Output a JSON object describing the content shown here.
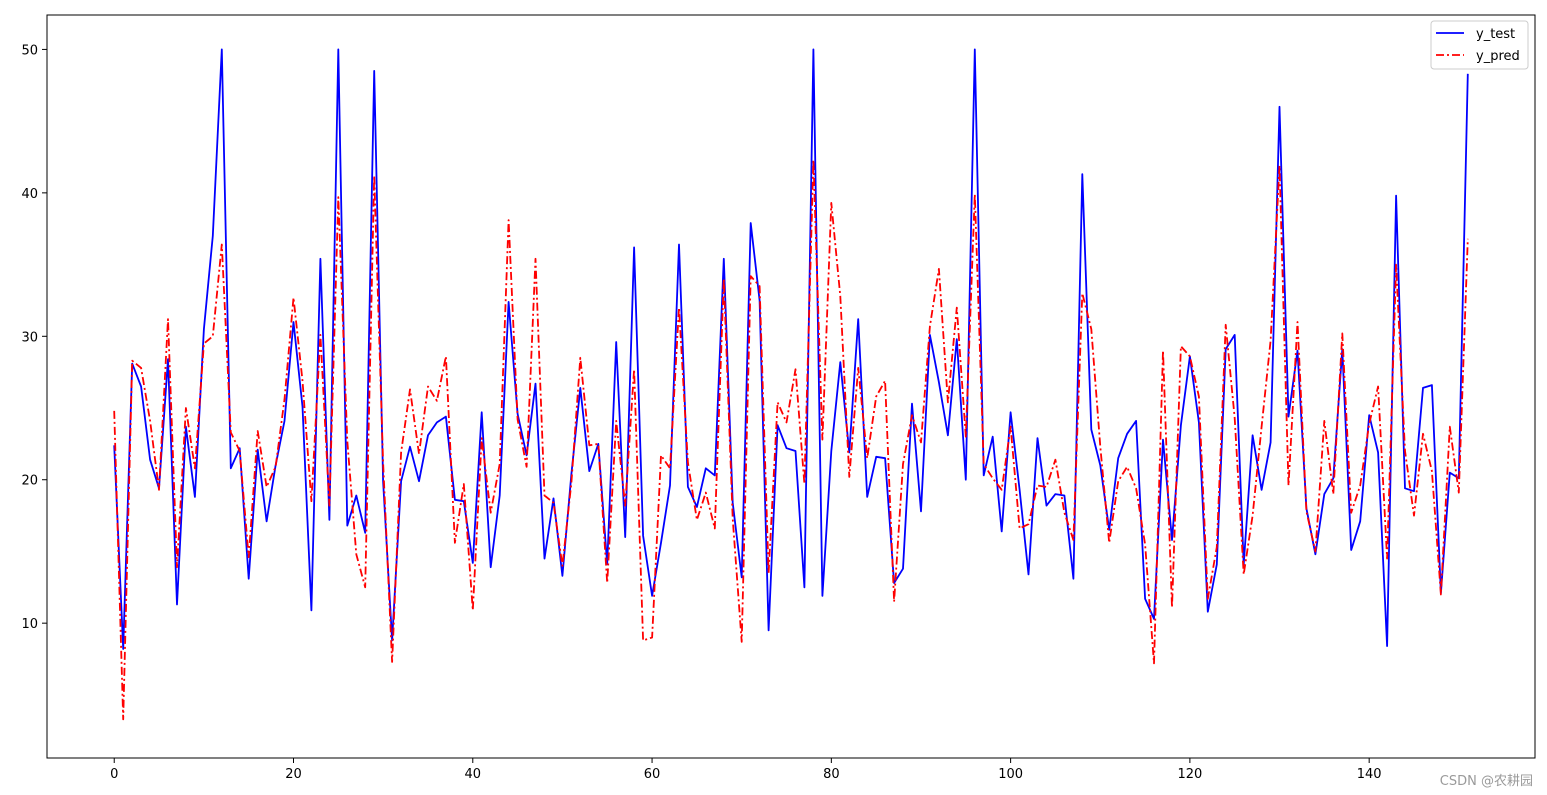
{
  "chart_data": {
    "type": "line",
    "title": "",
    "xlabel": "",
    "ylabel": "",
    "xlim": [
      -7.5,
      158.5
    ],
    "ylim": [
      0.6,
      52.4
    ],
    "xticks": [
      0,
      20,
      40,
      60,
      80,
      100,
      120,
      140
    ],
    "yticks": [
      10,
      20,
      30,
      40,
      50
    ],
    "grid": false,
    "legend_position": "top-right",
    "x": [
      0,
      1,
      2,
      3,
      4,
      5,
      6,
      7,
      8,
      9,
      10,
      11,
      12,
      13,
      14,
      15,
      16,
      17,
      18,
      19,
      20,
      21,
      22,
      23,
      24,
      25,
      26,
      27,
      28,
      29,
      30,
      31,
      32,
      33,
      34,
      35,
      36,
      37,
      38,
      39,
      40,
      41,
      42,
      43,
      44,
      45,
      46,
      47,
      48,
      49,
      50,
      51,
      52,
      53,
      54,
      55,
      56,
      57,
      58,
      59,
      60,
      61,
      62,
      63,
      64,
      65,
      66,
      67,
      68,
      69,
      70,
      71,
      72,
      73,
      74,
      75,
      76,
      77,
      78,
      79,
      80,
      81,
      82,
      83,
      84,
      85,
      86,
      87,
      88,
      89,
      90,
      91,
      92,
      93,
      94,
      95,
      96,
      97,
      98,
      99,
      100,
      101,
      102,
      103,
      104,
      105,
      106,
      107,
      108,
      109,
      110,
      111,
      112,
      113,
      114,
      115,
      116,
      117,
      118,
      119,
      120,
      121,
      122,
      123,
      124,
      125,
      126,
      127,
      128,
      129,
      130,
      131,
      132,
      133,
      134,
      135,
      136,
      137,
      138,
      139,
      140,
      141,
      142,
      143,
      144,
      145,
      146,
      147,
      148,
      149,
      150,
      151
    ],
    "series": [
      {
        "name": "y_test",
        "color": "#0000ff",
        "style": "solid",
        "values": [
          22.4,
          8.2,
          28.1,
          26.5,
          21.4,
          19.4,
          28.4,
          11.3,
          23.7,
          18.8,
          30.5,
          37.0,
          50.0,
          20.8,
          22.2,
          13.1,
          22.1,
          17.1,
          21.0,
          24.1,
          31.0,
          25.1,
          10.9,
          35.4,
          17.2,
          50.0,
          16.8,
          18.9,
          16.3,
          48.5,
          19.9,
          8.8,
          19.9,
          22.3,
          19.9,
          23.1,
          24.0,
          24.4,
          18.6,
          18.5,
          14.2,
          24.7,
          13.9,
          18.9,
          32.4,
          24.6,
          21.7,
          26.7,
          14.5,
          18.7,
          13.3,
          20.4,
          26.4,
          20.6,
          22.5,
          14.1,
          29.6,
          16.0,
          36.2,
          16.1,
          11.9,
          15.6,
          19.6,
          36.4,
          19.5,
          18.1,
          20.8,
          20.3,
          35.4,
          18.4,
          13.2,
          37.9,
          32.5,
          9.5,
          23.8,
          22.2,
          22.0,
          12.5,
          50.0,
          11.9,
          22.0,
          28.2,
          21.9,
          31.2,
          18.8,
          21.6,
          21.5,
          12.8,
          13.8,
          25.3,
          17.8,
          30.1,
          26.8,
          23.1,
          29.8,
          20.0,
          50.0,
          20.3,
          23.0,
          16.4,
          24.7,
          19.3,
          13.4,
          22.9,
          18.2,
          19.0,
          18.9,
          13.1,
          41.3,
          23.5,
          21.0,
          16.5,
          21.5,
          23.2,
          24.1,
          11.7,
          10.3,
          22.8,
          15.8,
          23.8,
          28.6,
          24.0,
          10.8,
          14.1,
          29.1,
          30.1,
          14.1,
          23.1,
          19.3,
          22.6,
          46.0,
          24.4,
          29.0,
          18.0,
          14.8,
          19.0,
          20.1,
          29.1,
          15.1,
          17.1,
          24.5,
          21.9,
          8.4,
          39.8,
          19.4,
          19.2,
          26.4,
          26.6,
          12.1,
          20.5,
          20.1,
          48.3
        ]
      },
      {
        "name": "y_pred",
        "color": "#ff0000",
        "style": "dashdot",
        "values": [
          24.8,
          3.3,
          28.3,
          27.8,
          24.1,
          19.3,
          31.2,
          13.9,
          25.0,
          20.8,
          29.5,
          30.0,
          36.4,
          23.3,
          22.0,
          14.6,
          23.4,
          19.5,
          20.9,
          25.6,
          32.7,
          26.9,
          18.5,
          30.1,
          18.2,
          39.7,
          22.7,
          14.8,
          12.5,
          41.2,
          21.2,
          7.3,
          21.9,
          26.3,
          21.8,
          26.5,
          25.5,
          28.6,
          15.6,
          19.7,
          10.9,
          22.9,
          17.7,
          21.1,
          38.1,
          24.2,
          20.9,
          35.4,
          18.9,
          18.4,
          14.0,
          19.8,
          28.5,
          22.4,
          22.5,
          12.8,
          24.1,
          18.2,
          27.7,
          8.8,
          9.0,
          21.7,
          20.8,
          32.0,
          21.2,
          17.2,
          19.1,
          16.6,
          34.0,
          17.3,
          8.7,
          34.2,
          33.5,
          13.5,
          25.4,
          24.0,
          27.7,
          19.7,
          42.3,
          22.8,
          39.3,
          32.8,
          20.2,
          27.8,
          21.5,
          25.8,
          26.9,
          11.5,
          21.1,
          24.5,
          22.6,
          30.7,
          34.7,
          25.4,
          32.0,
          23.0,
          39.9,
          21.1,
          20.1,
          19.3,
          23.7,
          16.6,
          16.9,
          19.6,
          19.5,
          21.4,
          17.7,
          15.8,
          33.0,
          30.5,
          22.3,
          15.6,
          19.9,
          20.9,
          19.4,
          15.5,
          7.2,
          29.0,
          11.1,
          29.3,
          28.6,
          25.8,
          11.7,
          15.3,
          30.8,
          24.3,
          13.4,
          17.5,
          23.7,
          29.7,
          41.9,
          19.6,
          31.0,
          17.8,
          15.0,
          24.1,
          19.0,
          30.2,
          17.7,
          19.6,
          23.9,
          26.5,
          14.5,
          35.0,
          22.0,
          17.5,
          23.2,
          20.6,
          12.0,
          23.7,
          19.1,
          36.8
        ]
      }
    ]
  },
  "legend": {
    "items": [
      {
        "label": "y_test",
        "color": "#0000ff",
        "dash": ""
      },
      {
        "label": "y_pred",
        "color": "#ff0000",
        "dash": "8,3,2,3"
      }
    ]
  },
  "watermark": "CSDN @农耕园"
}
